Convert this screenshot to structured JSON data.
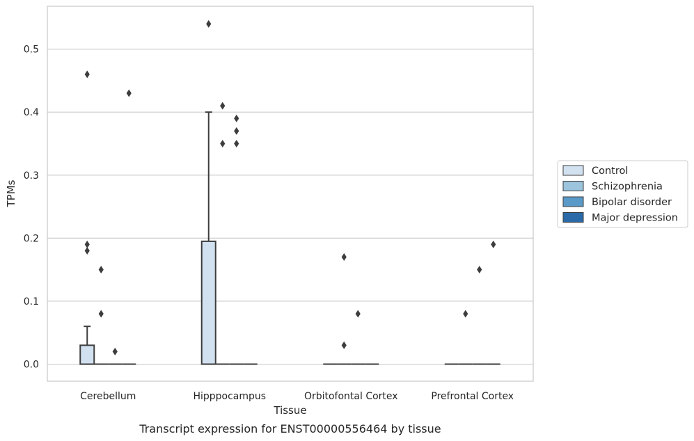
{
  "chart_data": {
    "type": "box",
    "xlabel": "Tissue",
    "ylabel": "TPMs",
    "caption": "Transcript expression for ENST00000556464 by tissue",
    "ylim": [
      -0.027,
      0.568
    ],
    "yticks": [
      "0.0",
      "0.1",
      "0.2",
      "0.3",
      "0.4",
      "0.5"
    ],
    "ytick_values": [
      0.0,
      0.1,
      0.2,
      0.3,
      0.4,
      0.5
    ],
    "grid": true,
    "legend_position": "right",
    "categories": [
      "Cerebellum",
      "Hipppocampus",
      "Orbitofontal Cortex",
      "Prefrontal Cortex"
    ],
    "series": [
      {
        "name": "Control",
        "color": "#d2e1f0",
        "boxes": [
          {
            "q1": 0.0,
            "median": 0.0,
            "q3": 0.03,
            "whisker_low": 0.0,
            "whisker_high": 0.06,
            "outliers": [
              0.46,
              0.19,
              0.18
            ]
          },
          {
            "q1": 0.0,
            "median": 0.0,
            "q3": 0.195,
            "whisker_low": 0.0,
            "whisker_high": 0.4,
            "outliers": [
              0.54
            ]
          },
          {
            "q1": 0.0,
            "median": 0.0,
            "q3": 0.0,
            "whisker_low": 0.0,
            "whisker_high": 0.0,
            "outliers": []
          },
          {
            "q1": 0.0,
            "median": 0.0,
            "q3": 0.0,
            "whisker_low": 0.0,
            "whisker_high": 0.0,
            "outliers": []
          }
        ]
      },
      {
        "name": "Schizophrenia",
        "color": "#9cc4dd",
        "boxes": [
          {
            "q1": 0.0,
            "median": 0.0,
            "q3": 0.0,
            "whisker_low": 0.0,
            "whisker_high": 0.0,
            "outliers": [
              0.15,
              0.08
            ]
          },
          {
            "q1": 0.0,
            "median": 0.0,
            "q3": 0.0,
            "whisker_low": 0.0,
            "whisker_high": 0.0,
            "outliers": [
              0.41,
              0.35
            ]
          },
          {
            "q1": 0.0,
            "median": 0.0,
            "q3": 0.0,
            "whisker_low": 0.0,
            "whisker_high": 0.0,
            "outliers": [
              0.17,
              0.03
            ]
          },
          {
            "q1": 0.0,
            "median": 0.0,
            "q3": 0.0,
            "whisker_low": 0.0,
            "whisker_high": 0.0,
            "outliers": [
              0.08
            ]
          }
        ]
      },
      {
        "name": "Bipolar disorder",
        "color": "#5a9ac8",
        "boxes": [
          {
            "q1": 0.0,
            "median": 0.0,
            "q3": 0.0,
            "whisker_low": 0.0,
            "whisker_high": 0.0,
            "outliers": [
              0.02
            ]
          },
          {
            "q1": 0.0,
            "median": 0.0,
            "q3": 0.0,
            "whisker_low": 0.0,
            "whisker_high": 0.0,
            "outliers": [
              0.39,
              0.37,
              0.35
            ]
          },
          {
            "q1": 0.0,
            "median": 0.0,
            "q3": 0.0,
            "whisker_low": 0.0,
            "whisker_high": 0.0,
            "outliers": [
              0.08
            ]
          },
          {
            "q1": 0.0,
            "median": 0.0,
            "q3": 0.0,
            "whisker_low": 0.0,
            "whisker_high": 0.0,
            "outliers": [
              0.15
            ]
          }
        ]
      },
      {
        "name": "Major depression",
        "color": "#2b6aa8",
        "boxes": [
          {
            "q1": 0.0,
            "median": 0.0,
            "q3": 0.0,
            "whisker_low": 0.0,
            "whisker_high": 0.0,
            "outliers": [
              0.43
            ]
          },
          {
            "q1": 0.0,
            "median": 0.0,
            "q3": 0.0,
            "whisker_low": 0.0,
            "whisker_high": 0.0,
            "outliers": []
          },
          {
            "q1": 0.0,
            "median": 0.0,
            "q3": 0.0,
            "whisker_low": 0.0,
            "whisker_high": 0.0,
            "outliers": []
          },
          {
            "q1": 0.0,
            "median": 0.0,
            "q3": 0.0,
            "whisker_low": 0.0,
            "whisker_high": 0.0,
            "outliers": [
              0.19
            ]
          }
        ]
      }
    ]
  }
}
